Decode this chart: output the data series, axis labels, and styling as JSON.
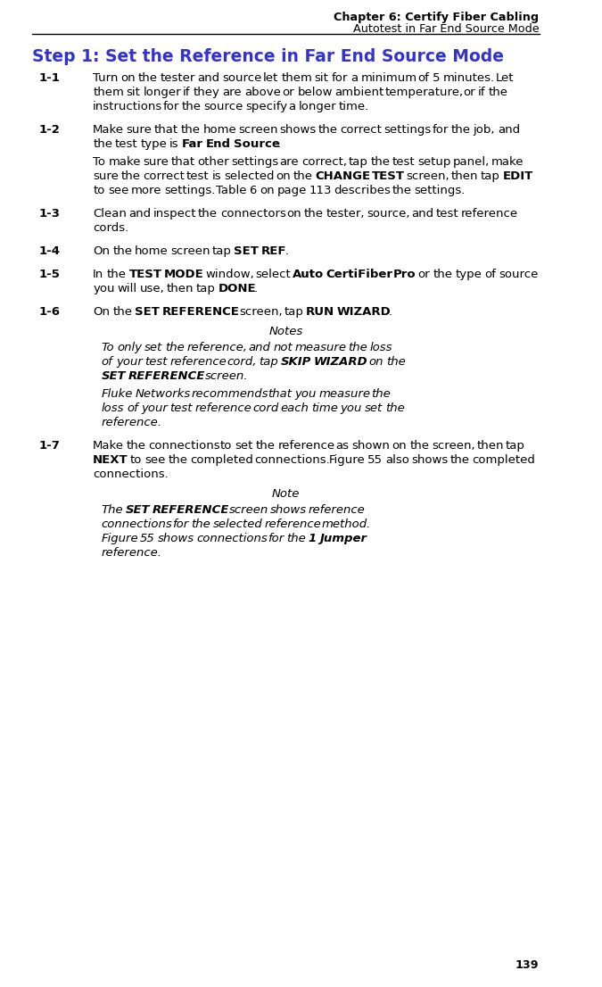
{
  "header_line1": "Chapter 6: Certify Fiber Cabling",
  "header_line2": "Autotest in Far End Source Mode",
  "step_title": "Step 1: Set the Reference in Far End Source Mode",
  "step_title_color": "#3333CC",
  "header_text_color": "#000000",
  "page_number": "139",
  "bg_color": "#FFFFFF",
  "items": [
    {
      "label": "1-1",
      "text": "Turn on the tester and source let them sit for a minimum of 5 minutes. Let them sit longer if they are above or below ambient temperature, or if the instructions for the source specify a longer time."
    },
    {
      "label": "1-2",
      "text_parts": [
        {
          "text": "Make sure that the home screen shows the correct settings for the job, and the test type is ",
          "bold": false
        },
        {
          "text": "Far End Source",
          "bold": true
        },
        {
          "text": ".",
          "bold": false
        }
      ],
      "extra_para": [
        {
          "text": "To make sure that other settings are correct, tap the test setup panel, make sure the correct test is selected on the ",
          "bold": false
        },
        {
          "text": "CHANGE TEST",
          "bold": true
        },
        {
          "text": " screen, then tap ",
          "bold": false
        },
        {
          "text": "EDIT",
          "bold": true
        },
        {
          "text": " to see more settings. Table 6 on page 113 describes the settings.",
          "bold": false
        }
      ]
    },
    {
      "label": "1-3",
      "text_parts": [
        {
          "text": "Clean and inspect the connectors on the tester, source, and test reference cords.",
          "bold": false
        }
      ]
    },
    {
      "label": "1-4",
      "text_parts": [
        {
          "text": "On the home screen tap ",
          "bold": false
        },
        {
          "text": "SET REF",
          "bold": true
        },
        {
          "text": ".",
          "bold": false
        }
      ]
    },
    {
      "label": "1-5",
      "text_parts": [
        {
          "text": "In the ",
          "bold": false
        },
        {
          "text": "TEST MODE",
          "bold": true
        },
        {
          "text": " window, select ",
          "bold": false
        },
        {
          "text": "Auto CertiFiber Pro",
          "bold": true
        },
        {
          "text": " or the type of source you will use, then tap ",
          "bold": false
        },
        {
          "text": "DONE",
          "bold": true
        },
        {
          "text": ".",
          "bold": false
        }
      ]
    },
    {
      "label": "1-6",
      "text_parts": [
        {
          "text": "On the ",
          "bold": false
        },
        {
          "text": "SET REFERENCE",
          "bold": true
        },
        {
          "text": " screen, tap ",
          "bold": false
        },
        {
          "text": "RUN WIZARD",
          "bold": true
        },
        {
          "text": ".",
          "bold": false
        }
      ],
      "notes_title": "Notes",
      "notes": [
        {
          "italic_parts": [
            {
              "text": "To only set the reference, and not measure the loss of your test reference cord, tap ",
              "bold": false
            },
            {
              "text": "SKIP WIZARD",
              "bold": true
            },
            {
              "text": " on the ",
              "bold": false
            },
            {
              "text": "SET REFERENCE",
              "bold": true
            },
            {
              "text": " screen.",
              "bold": false
            }
          ]
        },
        {
          "italic_parts": [
            {
              "text": "Fluke Networks recommends that you measure the loss of your test reference cord each time you set the reference.",
              "bold": false
            }
          ]
        }
      ]
    },
    {
      "label": "1-7",
      "text_parts": [
        {
          "text": "Make the connections to set the reference as shown on the screen, then tap ",
          "bold": false
        },
        {
          "text": "NEXT",
          "bold": true
        },
        {
          "text": " to see the completed connections. Figure 55 also shows the completed connections.",
          "bold": false
        }
      ],
      "note_title": "Note",
      "note_parts": [
        {
          "text": "The ",
          "bold": false
        },
        {
          "text": "SET REFERENCE",
          "bold": true
        },
        {
          "text": " screen shows reference connections for the selected reference method. Figure 55 shows connections for the ",
          "bold": false
        },
        {
          "text": "1 Jumper",
          "bold": true
        },
        {
          "text": " reference.",
          "bold": false
        }
      ]
    }
  ]
}
